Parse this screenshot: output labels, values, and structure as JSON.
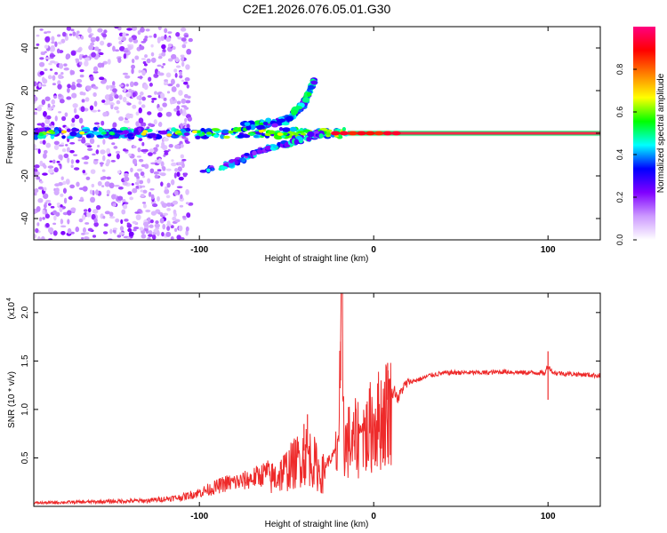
{
  "title": "C2E1.2026.076.05.01.G30",
  "chart_data": [
    {
      "type": "heatmap",
      "title": "C2E1.2026.076.05.01.G30",
      "xlabel": "Height of straight line (km)",
      "ylabel": "Frequency (Hz)",
      "xlim": [
        -195,
        130
      ],
      "ylim": [
        -50,
        50
      ],
      "x_ticks": [
        -100,
        0,
        100
      ],
      "x_tick_labels": [
        "-100",
        "0",
        "100"
      ],
      "y_ticks": [
        -40,
        -20,
        0,
        20,
        40
      ],
      "y_tick_labels": [
        "-40",
        "-20",
        "0",
        "20",
        "40"
      ],
      "grid": false,
      "colorbar": {
        "label": "Normalized spectral amplitude",
        "range": [
          0,
          1
        ],
        "ticks": [
          0,
          0.2,
          0.4,
          0.6,
          0.8
        ],
        "tick_labels": [
          "0.0",
          "0.2",
          "0.4",
          "0.6",
          "0.8"
        ],
        "colors": [
          "#ffffff",
          "#cc99ff",
          "#8000ff",
          "#0000ff",
          "#00ffff",
          "#00ff00",
          "#ffff00",
          "#ff8000",
          "#ff0000",
          "#ff0080"
        ]
      },
      "features": [
        {
          "name": "noise-region",
          "x_range": [
            -195,
            -105
          ],
          "freq_range": [
            -50,
            50
          ]
        },
        {
          "name": "main-carrier",
          "x_range": [
            -195,
            130
          ],
          "freq_center": 0
        },
        {
          "name": "rising-branch",
          "points": [
            [
              -75,
              3
            ],
            [
              -50,
              6
            ],
            [
              -40,
              14
            ],
            [
              -34,
              25
            ]
          ]
        },
        {
          "name": "falling-branch",
          "points": [
            [
              -98,
              -18
            ],
            [
              -80,
              -14
            ],
            [
              -65,
              -8
            ],
            [
              -45,
              -4
            ],
            [
              -30,
              0
            ]
          ]
        },
        {
          "name": "steady-line",
          "x_range": [
            -15,
            130
          ],
          "freq_center": 0
        }
      ]
    },
    {
      "type": "line",
      "xlabel": "Height of straight line (km)",
      "ylabel": "SNR (10 * v/v)",
      "scale_label": "(x10",
      "scale_exp": "4",
      "xlim": [
        -195,
        130
      ],
      "ylim": [
        0,
        2.2
      ],
      "x_ticks": [
        -100,
        0,
        100
      ],
      "x_tick_labels": [
        "-100",
        "0",
        "100"
      ],
      "y_ticks": [
        0.5,
        1.0,
        1.5,
        2.0
      ],
      "y_tick_labels": [
        "0.5",
        "1.0",
        "1.5",
        "2.0"
      ],
      "grid": false,
      "series": [
        {
          "name": "SNR",
          "color": "#ee2a2a",
          "x": [
            -195,
            -160,
            -130,
            -110,
            -100,
            -92,
            -85,
            -75,
            -65,
            -55,
            -48,
            -42,
            -38,
            -34,
            -30,
            -27,
            -24,
            -21,
            -19,
            -18,
            -17,
            -16,
            -14,
            -12,
            -10,
            -8,
            -6,
            -4,
            -2,
            0,
            2,
            4,
            6,
            8,
            10,
            12,
            14,
            16,
            18,
            20,
            24,
            28,
            32,
            38,
            45,
            55,
            65,
            75,
            85,
            95,
            98,
            100,
            103,
            110,
            120,
            130
          ],
          "y": [
            0.03,
            0.04,
            0.05,
            0.08,
            0.12,
            0.16,
            0.2,
            0.22,
            0.27,
            0.35,
            0.45,
            0.55,
            0.6,
            0.5,
            0.35,
            0.45,
            0.5,
            0.6,
            1.3,
            2.2,
            0.8,
            0.7,
            0.75,
            0.68,
            0.8,
            0.78,
            0.85,
            0.8,
            0.9,
            0.95,
            0.98,
            1.0,
            1.05,
            1.1,
            1.15,
            1.2,
            1.1,
            1.2,
            1.25,
            1.28,
            1.3,
            1.32,
            1.35,
            1.37,
            1.38,
            1.38,
            1.38,
            1.39,
            1.38,
            1.38,
            1.37,
            1.45,
            1.38,
            1.37,
            1.36,
            1.35
          ],
          "burst_ranges": [
            [
              -60,
              -28
            ],
            [
              -22,
              -8
            ],
            [
              -6,
              10
            ]
          ],
          "spikes": [
            [
              -18,
              2.2
            ],
            [
              -19,
              1.7
            ],
            [
              -38,
              0.95
            ],
            [
              -40,
              0.85
            ],
            [
              8,
              1.48
            ],
            [
              100,
              1.6
            ],
            [
              100,
              1.1
            ]
          ]
        }
      ]
    }
  ]
}
